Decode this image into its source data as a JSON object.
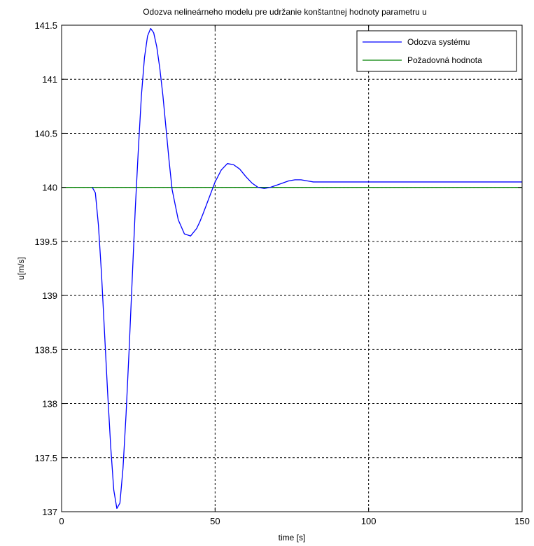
{
  "chart_data": {
    "type": "line",
    "title": "Odozva nelineárneho modelu pre udržanie konštantnej hodnoty parametru u",
    "xlabel": "time [s]",
    "ylabel": "u[m/s]",
    "xlim": [
      0,
      150
    ],
    "ylim": [
      137,
      141.5
    ],
    "x_ticks": [
      0,
      50,
      100,
      150
    ],
    "y_ticks": [
      137,
      137.5,
      138,
      138.5,
      139,
      139.5,
      140,
      140.5,
      141,
      141.5
    ],
    "x_tick_labels": [
      "0",
      "50",
      "100",
      "150"
    ],
    "y_tick_labels": [
      "137",
      "137.5",
      "138",
      "138.5",
      "139",
      "139.5",
      "140",
      "140.5",
      "141",
      "141.5"
    ],
    "grid": true,
    "legend_position": "top-right",
    "series": [
      {
        "name": "Odozva systému",
        "color": "#0000ff",
        "x": [
          10,
          11,
          12,
          13,
          14,
          15,
          16,
          17,
          18,
          19,
          20,
          21,
          22,
          23,
          24,
          25,
          26,
          27,
          28,
          29,
          30,
          31,
          32,
          33,
          34,
          35,
          36,
          38,
          40,
          42,
          44,
          45,
          46,
          48,
          50,
          52,
          54,
          56,
          58,
          60,
          62,
          64,
          66,
          68,
          70,
          72,
          74,
          76,
          78,
          80,
          82,
          84,
          86,
          88,
          90,
          93,
          96,
          100,
          110,
          120,
          130,
          140,
          150
        ],
        "y": [
          140.0,
          139.95,
          139.65,
          139.2,
          138.65,
          138.1,
          137.6,
          137.2,
          137.03,
          137.08,
          137.4,
          137.9,
          138.5,
          139.15,
          139.8,
          140.35,
          140.85,
          141.2,
          141.4,
          141.47,
          141.43,
          141.3,
          141.1,
          140.85,
          140.55,
          140.25,
          139.98,
          139.7,
          139.57,
          139.55,
          139.62,
          139.68,
          139.75,
          139.9,
          140.05,
          140.16,
          140.22,
          140.21,
          140.17,
          140.1,
          140.04,
          140.0,
          139.99,
          140.0,
          140.02,
          140.04,
          140.06,
          140.07,
          140.07,
          140.06,
          140.05,
          140.05,
          140.05,
          140.05,
          140.05,
          140.05,
          140.05,
          140.05,
          140.05,
          140.05,
          140.05,
          140.05,
          140.05
        ]
      },
      {
        "name": "Požadovná hodnota",
        "color": "#008000",
        "x": [
          0,
          150
        ],
        "y": [
          140,
          140
        ]
      }
    ]
  }
}
